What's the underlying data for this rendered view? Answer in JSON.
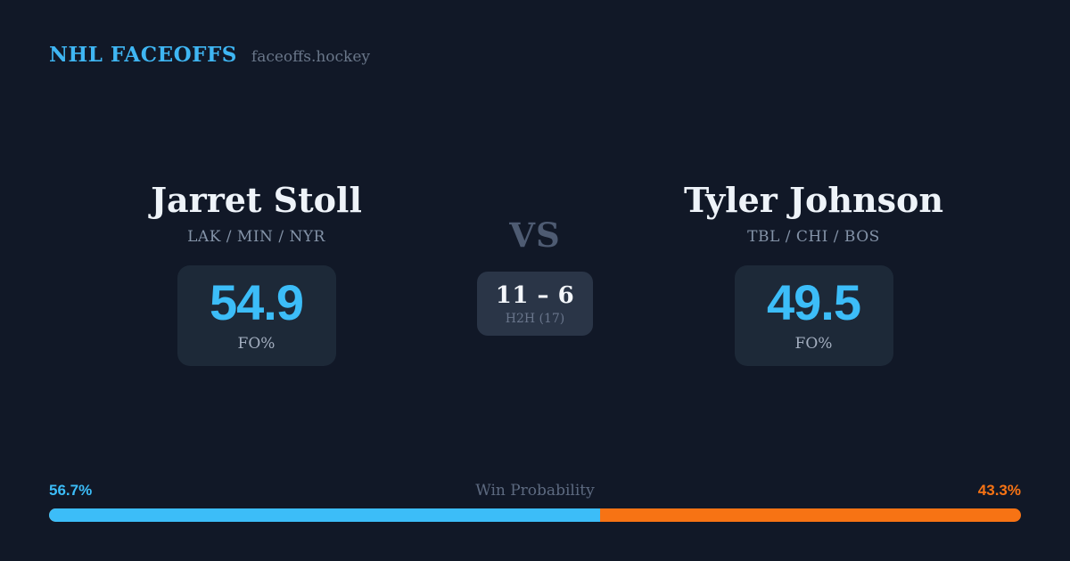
{
  "header": {
    "brand": "NHL FACEOFFS",
    "domain": "faceoffs.hockey"
  },
  "matchup": {
    "vs_label": "VS",
    "h2h": {
      "score": "11 – 6",
      "label": "H2H (17)"
    },
    "players": [
      {
        "name": "Jarret Stoll",
        "teams": "LAK / MIN / NYR",
        "fo_pct": "54.9",
        "stat_label": "FO%"
      },
      {
        "name": "Tyler Johnson",
        "teams": "TBL / CHI / BOS",
        "fo_pct": "49.5",
        "stat_label": "FO%"
      }
    ]
  },
  "win_probability": {
    "title": "Win Probability",
    "left_pct_label": "56.7%",
    "right_pct_label": "43.3%",
    "left_value": 56.7,
    "right_value": 43.3
  },
  "colors": {
    "background": "#111827",
    "card": "#1d2938",
    "card_center": "#2a3547",
    "accent_blue": "#3cbdf8",
    "accent_orange": "#f77314",
    "text_light": "#eef3f9",
    "muted_slate": "#697689"
  }
}
